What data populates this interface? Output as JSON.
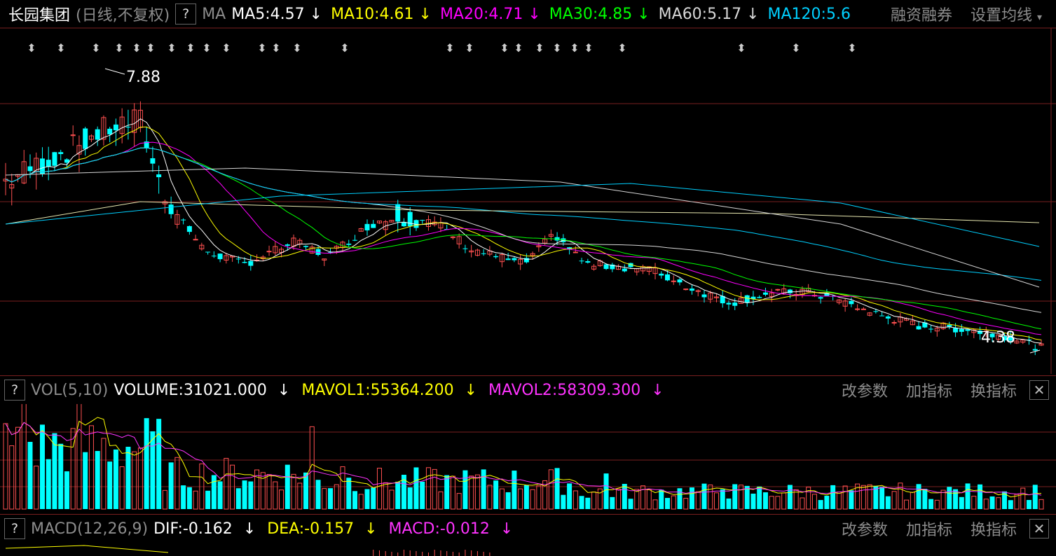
{
  "stock": {
    "name": "长园集团",
    "mode": "(日线,不复权)",
    "help": "?",
    "ma_label": "MA"
  },
  "ma": [
    {
      "key": "MA5",
      "value": "4.57",
      "color": "#ffffff"
    },
    {
      "key": "MA10",
      "value": "4.61",
      "color": "#ffff00"
    },
    {
      "key": "MA20",
      "value": "4.71",
      "color": "#ff00ff"
    },
    {
      "key": "MA30",
      "value": "4.85",
      "color": "#00ff00"
    },
    {
      "key": "MA60",
      "value": "5.17",
      "color": "#d8d8d8"
    },
    {
      "key": "MA120",
      "value": "5.6",
      "color": "#00d0ff"
    }
  ],
  "price_right": {
    "finance": "融资融券",
    "settings": "设置均线",
    "settings_arrow": "▾"
  },
  "price_marks": {
    "high": "7.88",
    "low": "4.38"
  },
  "vol": {
    "label": "VOL(5,10)",
    "volume": "VOLUME:31021.000",
    "mavol1": "MAVOL1:55364.200",
    "mavol2": "MAVOL2:58309.300",
    "arrow": "↓"
  },
  "macd": {
    "label": "MACD(12,26,9)",
    "dif": "DIF:-0.162",
    "dea": "DEA:-0.157",
    "macd": "MACD:-0.012",
    "arrow": "↓"
  },
  "panel_tools": {
    "change_params": "改参数",
    "add_indicator": "加指标",
    "swap_indicator": "换指标",
    "close": "✕"
  },
  "colors": {
    "up": "#ff5050",
    "down": "#00ffff",
    "grid": "#7a1f1f"
  },
  "chart_data": {
    "type": "candlestick",
    "price_extrema": {
      "high": 7.88,
      "low": 4.38
    },
    "ma_last": {
      "MA5": 4.57,
      "MA10": 4.61,
      "MA20": 4.71,
      "MA30": 4.85,
      "MA60": 5.17,
      "MA120": 5.6
    },
    "volume_last": 31021.0,
    "mavol1": 55364.2,
    "mavol2": 58309.3,
    "dif": -0.162,
    "dea": -0.157,
    "macd": -0.012
  }
}
